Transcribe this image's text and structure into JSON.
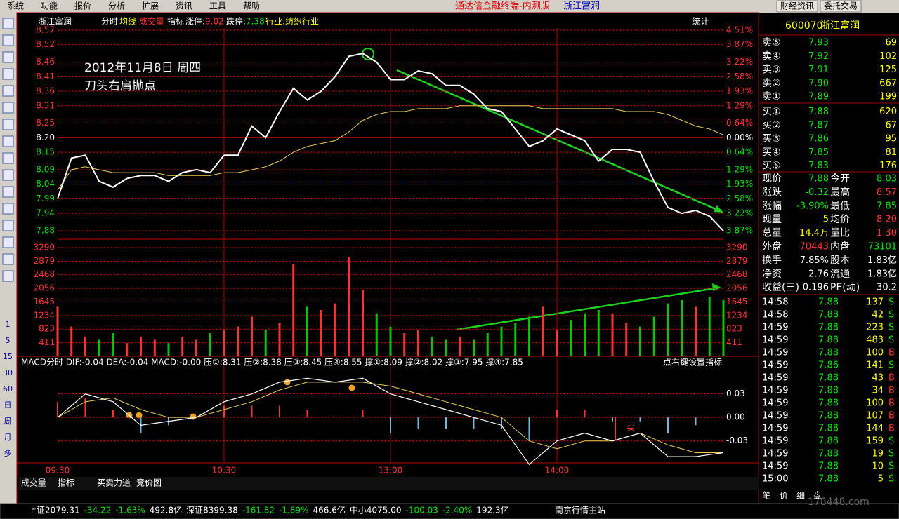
{
  "menu": [
    "系统",
    "功能",
    "报价",
    "分析",
    "扩展",
    "资讯",
    "工具",
    "帮助"
  ],
  "window_title": "通达信金融终端-内测版",
  "window_stock": "浙江富润",
  "top_buttons": [
    "财经资讯",
    "委托交易"
  ],
  "side_toolbar": [
    "1",
    "5",
    "15",
    "30",
    "60",
    "日",
    "周",
    "月",
    "多"
  ],
  "chart_header": {
    "name": "浙江富润",
    "tabs": [
      "分时",
      "均线",
      "成交量",
      "指标"
    ],
    "limit_up_label": "涨停:",
    "limit_up": "9.02",
    "limit_down_label": "跌停:",
    "limit_down": "7.38",
    "industry": "行业:纺织行业",
    "stats": "统计"
  },
  "annotation": [
    "2012年11月8日  周四",
    "刀头右肩抛点"
  ],
  "buy_mark": "买",
  "macd_header": "MACD分时  DIF:-0.04  DEA:-0.04  MACD:-0.00  压①:8.31  压②:8.38  压③:8.45  压④:8.55  撑①:8.09  撑②:8.02  撑③:7.95  撑④:7.85",
  "macd_hint": "点右键设置指标",
  "chart_data": [
    {
      "type": "line",
      "x": [
        0,
        5,
        10,
        15,
        20,
        25,
        30,
        35,
        40,
        45,
        50,
        55,
        60,
        65,
        70,
        75,
        80,
        85,
        90,
        95,
        100,
        105,
        110,
        115,
        120,
        125,
        130,
        135,
        140,
        145,
        150,
        155,
        160,
        165,
        170,
        175,
        180,
        185,
        190,
        195,
        200,
        205,
        210,
        215,
        220,
        225,
        230,
        235,
        240
      ],
      "xlim": [
        0,
        240
      ],
      "xticks": [
        {
          "value": 0,
          "label": "09:30"
        },
        {
          "value": 60,
          "label": "10:30"
        },
        {
          "value": 120,
          "label": "13:00"
        },
        {
          "value": 180,
          "label": "14:00"
        }
      ],
      "ylim": [
        7.88,
        8.57
      ],
      "yticks": [
        8.57,
        8.52,
        8.46,
        8.41,
        8.36,
        8.31,
        8.25,
        {
          "value": 8.2,
          "label": "8.20"
        },
        8.15,
        8.09,
        8.04,
        7.99,
        7.94,
        7.88
      ],
      "pct_ticks": [
        {
          "value": 4.51,
          "label": "4.51%"
        },
        {
          "value": 3.87,
          "label": "3.87%"
        },
        {
          "value": 3.22,
          "label": "3.22%"
        },
        {
          "value": 2.58,
          "label": "2.58%"
        },
        {
          "value": 1.93,
          "label": "1.93%"
        },
        {
          "value": 1.29,
          "label": "1.29%"
        },
        {
          "value": 0.64,
          "label": "0.64%"
        },
        {
          "value": 0,
          "label": "0.00%"
        },
        {
          "value": -0.64,
          "label": "0.64%"
        },
        {
          "value": -1.29,
          "label": "1.29%"
        },
        {
          "value": -1.93,
          "label": "1.93%"
        },
        {
          "value": -2.58,
          "label": "2.58%"
        },
        {
          "value": -3.22,
          "label": "3.22%"
        },
        {
          "value": -3.87,
          "label": "3.87%"
        }
      ],
      "series": [
        {
          "color": "#ffffff",
          "values": [
            7.99,
            8.13,
            8.14,
            8.05,
            8.03,
            8.06,
            8.07,
            8.07,
            8.05,
            8.08,
            8.09,
            8.08,
            8.14,
            8.14,
            8.24,
            8.2,
            8.29,
            8.37,
            8.33,
            8.36,
            8.41,
            8.48,
            8.49,
            8.46,
            8.4,
            8.4,
            8.43,
            8.42,
            8.38,
            8.38,
            8.35,
            8.3,
            8.29,
            8.23,
            8.17,
            8.19,
            8.23,
            8.21,
            8.19,
            8.12,
            8.16,
            8.16,
            8.15,
            8.05,
            7.96,
            7.94,
            7.95,
            7.93,
            7.88
          ]
        },
        {
          "color": "#e8d060",
          "values": [
            8.02,
            8.09,
            8.1,
            8.09,
            8.08,
            8.08,
            8.08,
            8.08,
            8.07,
            8.07,
            8.07,
            8.07,
            8.08,
            8.08,
            8.09,
            8.1,
            8.12,
            8.15,
            8.17,
            8.18,
            8.19,
            8.22,
            8.26,
            8.28,
            8.29,
            8.29,
            8.3,
            8.3,
            8.3,
            8.31,
            8.31,
            8.31,
            8.31,
            8.31,
            8.31,
            8.3,
            8.3,
            8.3,
            8.3,
            8.3,
            8.3,
            8.29,
            8.29,
            8.29,
            8.28,
            8.26,
            8.24,
            8.23,
            8.21
          ]
        }
      ]
    },
    {
      "type": "bar",
      "x": [
        0,
        5,
        10,
        15,
        20,
        25,
        30,
        35,
        40,
        45,
        50,
        55,
        60,
        65,
        70,
        75,
        80,
        85,
        90,
        95,
        100,
        105,
        110,
        115,
        120,
        125,
        130,
        135,
        140,
        145,
        150,
        155,
        160,
        165,
        170,
        175,
        180,
        185,
        190,
        195,
        200,
        205,
        210,
        215,
        220,
        225,
        230,
        235,
        240
      ],
      "xlim": [
        0,
        240
      ],
      "ylim": [
        0,
        3290
      ],
      "yticks": [
        3290,
        2879,
        2468,
        2056,
        1645,
        1234,
        823,
        411
      ],
      "up_color": "#ff3232",
      "down_color": "#00c800",
      "values": [
        1500,
        900,
        600,
        500,
        700,
        400,
        600,
        500,
        400,
        600,
        500,
        700,
        800,
        900,
        1200,
        800,
        1000,
        2800,
        1500,
        1400,
        1600,
        3000,
        2000,
        1300,
        900,
        700,
        800,
        600,
        500,
        600,
        500,
        700,
        900,
        1000,
        1200,
        1500,
        800,
        1100,
        1300,
        1400,
        1300,
        1000,
        900,
        1200,
        1600,
        1700,
        1500,
        1800,
        1700
      ]
    },
    {
      "type": "line",
      "x": [
        0,
        10,
        20,
        30,
        40,
        50,
        60,
        70,
        80,
        90,
        100,
        110,
        120,
        130,
        140,
        150,
        160,
        170,
        180,
        190,
        200,
        210,
        220,
        230,
        240
      ],
      "xlim": [
        0,
        240
      ],
      "ylim": [
        -0.058,
        0.061
      ],
      "yticks": [
        0.03,
        {
          "value": 0,
          "label": "0.00"
        },
        -0.03
      ],
      "series": [
        {
          "color": "#ffffff",
          "values": [
            0.0,
            0.03,
            0.02,
            -0.01,
            -0.005,
            0.0,
            0.02,
            0.03,
            0.045,
            0.05,
            0.045,
            0.05,
            0.03,
            0.02,
            0.01,
            0.0,
            -0.01,
            -0.06,
            -0.03,
            -0.02,
            -0.03,
            -0.02,
            -0.05,
            -0.05,
            -0.045
          ]
        },
        {
          "color": "#e8d060",
          "values": [
            0.0,
            0.02,
            0.025,
            0.01,
            0.0,
            0.0,
            0.01,
            0.02,
            0.035,
            0.045,
            0.045,
            0.045,
            0.04,
            0.03,
            0.02,
            0.01,
            0.0,
            -0.03,
            -0.04,
            -0.03,
            -0.03,
            -0.02,
            -0.035,
            -0.045,
            -0.045
          ]
        }
      ],
      "histogram": {
        "up_color": "#ff3232",
        "down_color": "#70b8d8",
        "values": [
          0.02,
          0.025,
          0.01,
          -0.02,
          -0.01,
          0.0,
          0.015,
          0.015,
          0.015,
          0.01,
          0.0,
          0.01,
          -0.02,
          -0.015,
          -0.015,
          -0.015,
          -0.015,
          -0.03,
          0.01,
          0.01,
          -0.005,
          -0.005,
          -0.02,
          -0.01,
          0.0
        ]
      }
    }
  ],
  "bottom_tabs": [
    "成交量",
    "指标",
    "买卖力道",
    "竞价图"
  ],
  "status_bar": [
    {
      "text": "上证2079.31",
      "color": "#ffffff"
    },
    {
      "text": "-34.22",
      "color": "#00e000"
    },
    {
      "text": "-1.63%",
      "color": "#00e000"
    },
    {
      "text": "492.8亿",
      "color": "#ffffff"
    },
    {
      "text": "深证8399.38",
      "color": "#ffffff"
    },
    {
      "text": "-161.82",
      "color": "#00e000"
    },
    {
      "text": "-1.89%",
      "color": "#00e000"
    },
    {
      "text": "466.6亿",
      "color": "#ffffff"
    },
    {
      "text": "中小4075.00",
      "color": "#ffffff"
    },
    {
      "text": "-100.03",
      "color": "#00e000"
    },
    {
      "text": "-2.40%",
      "color": "#00e000"
    },
    {
      "text": "192.3亿",
      "color": "#ffffff"
    }
  ],
  "server": "南京行情主站",
  "panel": {
    "code": "600070",
    "name": "浙江富润",
    "order_book": [
      [
        "卖⑤",
        "7.93",
        "69"
      ],
      [
        "卖④",
        "7.92",
        "102"
      ],
      [
        "卖③",
        "7.91",
        "125"
      ],
      [
        "卖②",
        "7.90",
        "667"
      ],
      [
        "卖①",
        "7.89",
        "199"
      ],
      [
        "买①",
        "7.88",
        "620"
      ],
      [
        "买②",
        "7.87",
        "67"
      ],
      [
        "买③",
        "7.86",
        "95"
      ],
      [
        "买④",
        "7.85",
        "81"
      ],
      [
        "买⑤",
        "7.83",
        "176"
      ]
    ],
    "quotes": [
      [
        {
          "label": "现价",
          "value": "7.88",
          "color": "#00e000"
        },
        {
          "label": "今开",
          "value": "8.03",
          "color": "#00e000"
        }
      ],
      [
        {
          "label": "涨跌",
          "value": "-0.32",
          "color": "#00e000"
        },
        {
          "label": "最高",
          "value": "8.57",
          "color": "#ff3232"
        }
      ],
      [
        {
          "label": "涨幅",
          "value": "-3.90%",
          "color": "#00e000"
        },
        {
          "label": "最低",
          "value": "7.85",
          "color": "#00e000"
        }
      ],
      [
        {
          "label": "现量",
          "value": "5",
          "color": "#ffff00"
        },
        {
          "label": "均价",
          "value": "8.20",
          "color": "#ff3232"
        }
      ],
      [
        {
          "label": "总量",
          "value": "14.4万",
          "color": "#ffff00"
        },
        {
          "label": "量比",
          "value": "1.30",
          "color": "#ff3232"
        }
      ],
      [
        {
          "label": "外盘",
          "value": "70443",
          "color": "#ff3232"
        },
        {
          "label": "内盘",
          "value": "73101",
          "color": "#00e000"
        }
      ],
      [
        {
          "label": "换手",
          "value": "7.85%",
          "color": "#ffffff"
        },
        {
          "label": "股本",
          "value": "1.83亿",
          "color": "#ffffff"
        }
      ],
      [
        {
          "label": "净资",
          "value": "2.76",
          "color": "#ffffff"
        },
        {
          "label": "流通",
          "value": "1.83亿",
          "color": "#ffffff"
        }
      ],
      [
        {
          "label": "收益(三)",
          "value": "0.196",
          "color": "#ffffff"
        },
        {
          "label": "PE(动)",
          "value": "30.2",
          "color": "#ffffff"
        }
      ]
    ],
    "trades": [
      [
        "14:58",
        "7.88",
        "137",
        "S"
      ],
      [
        "14:58",
        "7.88",
        "42",
        "S"
      ],
      [
        "14:59",
        "7.88",
        "223",
        "S"
      ],
      [
        "14:59",
        "7.88",
        "483",
        "S"
      ],
      [
        "14:59",
        "7.88",
        "100",
        "B"
      ],
      [
        "14:59",
        "7.86",
        "141",
        "S"
      ],
      [
        "14:59",
        "7.88",
        "43",
        "B"
      ],
      [
        "14:59",
        "7.88",
        "34",
        "B"
      ],
      [
        "14:59",
        "7.88",
        "100",
        "B"
      ],
      [
        "14:59",
        "7.88",
        "107",
        "B"
      ],
      [
        "14:59",
        "7.88",
        "144",
        "B"
      ],
      [
        "14:59",
        "7.88",
        "159",
        "S"
      ],
      [
        "14:59",
        "7.88",
        "19",
        "S"
      ],
      [
        "14:59",
        "7.88",
        "10",
        "S"
      ],
      [
        "15:00",
        "7.88",
        "5",
        "S"
      ]
    ],
    "side_colors": {
      "B": "#ff3232",
      "S": "#00e000"
    },
    "tabs": [
      "笔",
      "价",
      "细",
      "盘"
    ]
  },
  "watermark": "178448.com"
}
